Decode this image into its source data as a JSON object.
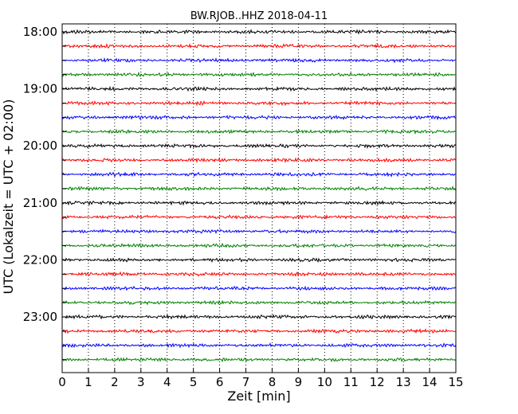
{
  "chart_data": {
    "type": "line",
    "title": "BW.RJOB..HHZ 2018-04-11",
    "xlabel": "Zeit  [min]",
    "ylabel": "UTC (Lokalzeit = UTC + 02:00)",
    "xlim": [
      0,
      15
    ],
    "x_ticks": [
      "0",
      "1",
      "2",
      "3",
      "4",
      "5",
      "6",
      "7",
      "8",
      "9",
      "10",
      "11",
      "12",
      "13",
      "14",
      "15"
    ],
    "grid": "vertical dotted lines at each minute",
    "hour_labels": [
      "18:00",
      "19:00",
      "20:00",
      "21:00",
      "22:00",
      "23:00"
    ],
    "trace_colors": [
      "#000000",
      "#ff0000",
      "#0000ff",
      "#008000"
    ],
    "trace_count": 24,
    "trace_interval_minutes": 15,
    "first_trace_start": "18:00"
  }
}
